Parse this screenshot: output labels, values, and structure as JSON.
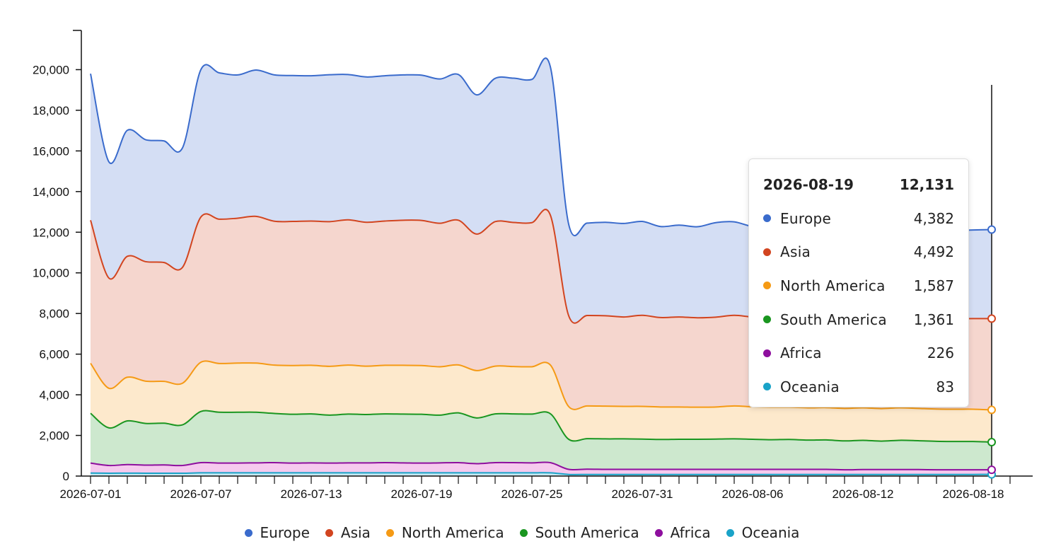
{
  "chart_data": {
    "type": "area",
    "stacked": true,
    "x": [
      "2026-07-01",
      "2026-07-02",
      "2026-07-03",
      "2026-07-04",
      "2026-07-05",
      "2026-07-06",
      "2026-07-07",
      "2026-07-08",
      "2026-07-09",
      "2026-07-10",
      "2026-07-11",
      "2026-07-12",
      "2026-07-13",
      "2026-07-14",
      "2026-07-15",
      "2026-07-16",
      "2026-07-17",
      "2026-07-18",
      "2026-07-19",
      "2026-07-20",
      "2026-07-21",
      "2026-07-22",
      "2026-07-23",
      "2026-07-24",
      "2026-07-25",
      "2026-07-26",
      "2026-07-27",
      "2026-07-28",
      "2026-07-29",
      "2026-07-30",
      "2026-07-31",
      "2026-08-01",
      "2026-08-02",
      "2026-08-03",
      "2026-08-04",
      "2026-08-05",
      "2026-08-06",
      "2026-08-07",
      "2026-08-08",
      "2026-08-09",
      "2026-08-10",
      "2026-08-11",
      "2026-08-12",
      "2026-08-13",
      "2026-08-14",
      "2026-08-15",
      "2026-08-16",
      "2026-08-17",
      "2026-08-18",
      "2026-08-19"
    ],
    "x_ticks": [
      "2026-07-01",
      "2026-07-07",
      "2026-07-13",
      "2026-07-19",
      "2026-07-25",
      "2026-07-31",
      "2026-08-06",
      "2026-08-12",
      "2026-08-18"
    ],
    "y_ticks": [
      "0",
      "2,000",
      "4,000",
      "6,000",
      "8,000",
      "10,000",
      "12,000",
      "14,000",
      "16,000",
      "18,000",
      "20,000"
    ],
    "ylim": [
      0,
      22000
    ],
    "grid": false,
    "legend_position": "bottom",
    "series": [
      {
        "name": "Oceania",
        "color": "#1aa3c8",
        "values": [
          150,
          140,
          145,
          140,
          140,
          140,
          160,
          160,
          160,
          160,
          160,
          160,
          160,
          160,
          160,
          160,
          160,
          160,
          160,
          160,
          160,
          160,
          160,
          160,
          160,
          160,
          80,
          80,
          80,
          80,
          80,
          80,
          80,
          80,
          80,
          80,
          80,
          80,
          80,
          80,
          80,
          80,
          80,
          80,
          80,
          80,
          80,
          80,
          80,
          83
        ]
      },
      {
        "name": "Africa",
        "color": "#8e0f9e",
        "values": [
          490,
          380,
          420,
          400,
          410,
          380,
          500,
          480,
          480,
          490,
          500,
          480,
          490,
          480,
          490,
          490,
          500,
          490,
          480,
          490,
          500,
          450,
          500,
          500,
          490,
          500,
          250,
          260,
          250,
          250,
          250,
          250,
          250,
          250,
          250,
          250,
          250,
          250,
          250,
          250,
          250,
          230,
          240,
          240,
          240,
          240,
          230,
          230,
          230,
          226
        ]
      },
      {
        "name": "South America",
        "color": "#1a9620",
        "values": [
          2450,
          1850,
          2150,
          2050,
          2050,
          2000,
          2520,
          2500,
          2500,
          2490,
          2420,
          2400,
          2410,
          2360,
          2400,
          2380,
          2400,
          2400,
          2400,
          2350,
          2450,
          2250,
          2400,
          2400,
          2400,
          2410,
          1480,
          1500,
          1500,
          1500,
          1490,
          1470,
          1480,
          1480,
          1490,
          1500,
          1480,
          1460,
          1470,
          1440,
          1450,
          1420,
          1440,
          1400,
          1440,
          1420,
          1400,
          1390,
          1390,
          1361
        ]
      },
      {
        "name": "North America",
        "color": "#f59a15",
        "values": [
          2460,
          1950,
          2150,
          2080,
          2060,
          2050,
          2420,
          2400,
          2420,
          2420,
          2380,
          2400,
          2390,
          2400,
          2410,
          2380,
          2390,
          2400,
          2400,
          2380,
          2360,
          2330,
          2350,
          2330,
          2330,
          2400,
          1610,
          1610,
          1610,
          1600,
          1610,
          1600,
          1590,
          1580,
          1580,
          1620,
          1600,
          1600,
          1590,
          1590,
          1590,
          1600,
          1600,
          1600,
          1600,
          1590,
          1590,
          1590,
          1590,
          1587
        ]
      },
      {
        "name": "Asia",
        "color": "#d24520",
        "values": [
          7040,
          5420,
          5950,
          5880,
          5850,
          5700,
          7150,
          7100,
          7130,
          7220,
          7080,
          7090,
          7100,
          7120,
          7150,
          7080,
          7100,
          7140,
          7140,
          7060,
          7120,
          6720,
          7110,
          7090,
          7090,
          7380,
          4470,
          4450,
          4450,
          4400,
          4480,
          4400,
          4430,
          4400,
          4420,
          4460,
          4420,
          4440,
          4440,
          4410,
          4430,
          4440,
          4440,
          4460,
          4440,
          4430,
          4440,
          4450,
          4460,
          4492
        ]
      },
      {
        "name": "Europe",
        "color": "#3a6bcc",
        "values": [
          7210,
          5720,
          6200,
          6000,
          5980,
          5880,
          7250,
          7200,
          7050,
          7200,
          7200,
          7180,
          7150,
          7230,
          7150,
          7150,
          7150,
          7150,
          7150,
          7100,
          7170,
          6850,
          7050,
          7100,
          7050,
          7300,
          4500,
          4550,
          4600,
          4600,
          4620,
          4480,
          4520,
          4480,
          4650,
          4600,
          4450,
          4460,
          4480,
          4410,
          4400,
          4370,
          4400,
          4350,
          4350,
          4340,
          4340,
          4340,
          4360,
          4382
        ]
      }
    ]
  },
  "tooltip": {
    "date": "2026-08-19",
    "total": "12,131",
    "rows": [
      {
        "name": "Europe",
        "value": "4,382",
        "color": "#3a6bcc"
      },
      {
        "name": "Asia",
        "value": "4,492",
        "color": "#d24520"
      },
      {
        "name": "North America",
        "value": "1,587",
        "color": "#f59a15"
      },
      {
        "name": "South America",
        "value": "1,361",
        "color": "#1a9620"
      },
      {
        "name": "Africa",
        "value": "226",
        "color": "#8e0f9e"
      },
      {
        "name": "Oceania",
        "value": "83",
        "color": "#1aa3c8"
      }
    ]
  },
  "legend": [
    {
      "name": "Europe",
      "color": "#3a6bcc"
    },
    {
      "name": "Asia",
      "color": "#d24520"
    },
    {
      "name": "North America",
      "color": "#f59a15"
    },
    {
      "name": "South America",
      "color": "#1a9620"
    },
    {
      "name": "Africa",
      "color": "#8e0f9e"
    },
    {
      "name": "Oceania",
      "color": "#1aa3c8"
    }
  ]
}
